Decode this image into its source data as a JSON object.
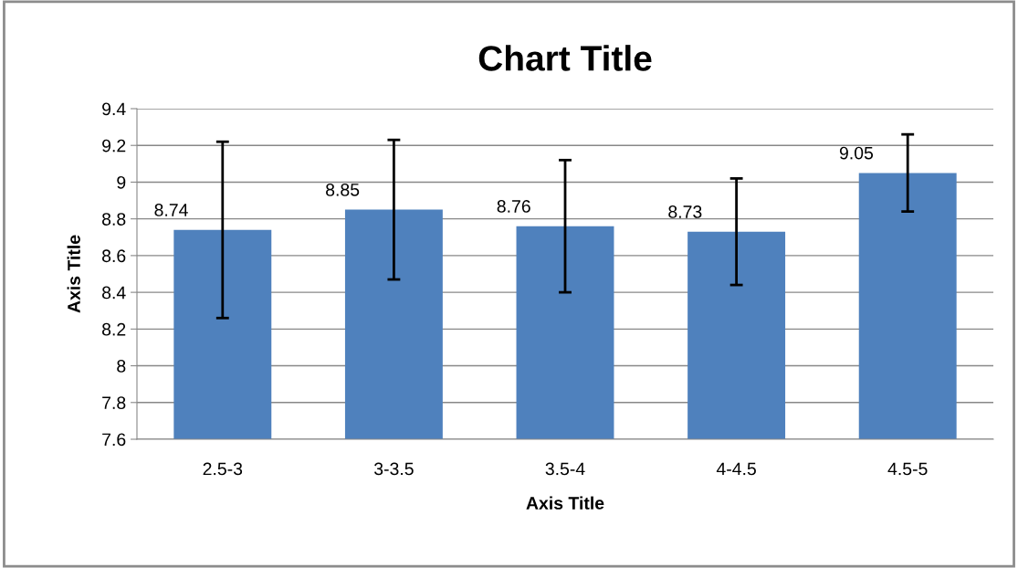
{
  "chart_data": {
    "type": "bar",
    "title": "Chart Title",
    "xlabel": "Axis Title",
    "ylabel": "Axis Title",
    "categories": [
      "2.5-3",
      "3-3.5",
      "3.5-4",
      "4-4.5",
      "4.5-5"
    ],
    "values": [
      8.74,
      8.85,
      8.76,
      8.73,
      9.05
    ],
    "errors": [
      0.48,
      0.38,
      0.36,
      0.29,
      0.21
    ],
    "color": "#4f81bd",
    "ylim": [
      7.6,
      9.4
    ],
    "yticks": [
      7.6,
      7.8,
      8,
      8.2,
      8.4,
      8.6,
      8.8,
      9,
      9.2,
      9.4
    ],
    "grid": "y",
    "data_labels": true
  }
}
